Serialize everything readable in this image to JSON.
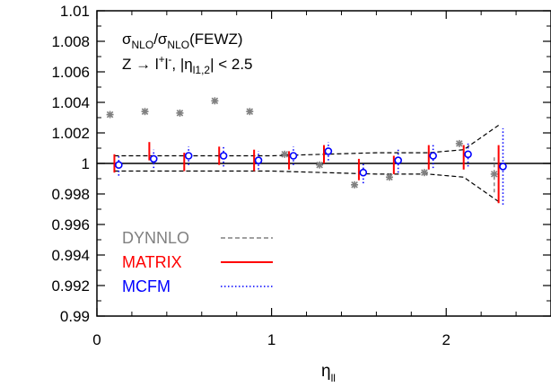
{
  "chart_data": {
    "type": "scatter",
    "xlabel_main": "η",
    "xlabel_sub": "ll",
    "xlim": [
      0,
      2.6
    ],
    "ylim": [
      0.99,
      1.01
    ],
    "xticks": [
      0,
      1,
      2
    ],
    "xtick_labels": [
      "0",
      "1",
      "2"
    ],
    "yticks": [
      0.99,
      0.992,
      0.994,
      0.996,
      0.998,
      1,
      1.002,
      1.004,
      1.006,
      1.008,
      1.01
    ],
    "ytick_labels": [
      "0.99",
      "0.992",
      "0.994",
      "0.996",
      "0.998",
      "1",
      "1.002",
      "1.004",
      "1.006",
      "1.008",
      "1.01"
    ],
    "reference_line": 1,
    "annotation_line1": {
      "a": "σ",
      "a_sub": "NLO",
      "sep": "/σ",
      "b_sub": "NLO",
      "tail": "(FEWZ)"
    },
    "annotation_line2": {
      "pre": "Z → l",
      "sup1": "+",
      "mid": "l",
      "sup2": "-",
      "post": ", |η",
      "sub": "l1,2",
      "end": "| < 2.5"
    },
    "band_upper": [
      {
        "x": 0.1,
        "y": 1.0005
      },
      {
        "x": 0.5,
        "y": 1.0005
      },
      {
        "x": 1.0,
        "y": 1.0005
      },
      {
        "x": 1.3,
        "y": 1.0006
      },
      {
        "x": 1.6,
        "y": 1.0007
      },
      {
        "x": 1.9,
        "y": 1.0007
      },
      {
        "x": 2.1,
        "y": 1.0009
      },
      {
        "x": 2.3,
        "y": 1.0025
      }
    ],
    "band_lower": [
      {
        "x": 0.1,
        "y": 0.9995
      },
      {
        "x": 0.5,
        "y": 0.9995
      },
      {
        "x": 1.0,
        "y": 0.9995
      },
      {
        "x": 1.3,
        "y": 0.9994
      },
      {
        "x": 1.6,
        "y": 0.9993
      },
      {
        "x": 1.9,
        "y": 0.9993
      },
      {
        "x": 2.1,
        "y": 0.9991
      },
      {
        "x": 2.3,
        "y": 0.9975
      }
    ],
    "series": [
      {
        "name": "DYNNLO",
        "color": "#808080",
        "marker": "asterisk",
        "points": [
          {
            "x": 0.075,
            "y": 1.0032,
            "err": 0.0002
          },
          {
            "x": 0.275,
            "y": 1.0034,
            "err": 0.0002
          },
          {
            "x": 0.475,
            "y": 1.0033,
            "err": 0.0002
          },
          {
            "x": 0.675,
            "y": 1.0041,
            "err": 0.0002
          },
          {
            "x": 0.875,
            "y": 1.0034,
            "err": 0.0002
          },
          {
            "x": 1.075,
            "y": 1.0006,
            "err": 0.0002
          },
          {
            "x": 1.275,
            "y": 0.9999,
            "err": 0.0002
          },
          {
            "x": 1.475,
            "y": 0.9986,
            "err": 0.0002
          },
          {
            "x": 1.675,
            "y": 0.9991,
            "err": 0.0002
          },
          {
            "x": 1.875,
            "y": 0.9994,
            "err": 0.0002
          },
          {
            "x": 2.075,
            "y": 1.0013,
            "err": 0.0002
          },
          {
            "x": 2.275,
            "y": 0.9993,
            "err": 0.0012
          }
        ]
      },
      {
        "name": "MATRIX",
        "color": "#ff0000",
        "marker": "none",
        "points": [
          {
            "x": 0.1,
            "y": 1.0,
            "err": 0.0006
          },
          {
            "x": 0.3,
            "y": 1.0008,
            "err": 0.0006
          },
          {
            "x": 0.5,
            "y": 1.0001,
            "err": 0.0006
          },
          {
            "x": 0.7,
            "y": 1.0005,
            "err": 0.0006
          },
          {
            "x": 0.9,
            "y": 1.0002,
            "err": 0.0007
          },
          {
            "x": 1.1,
            "y": 1.0002,
            "err": 0.0006
          },
          {
            "x": 1.3,
            "y": 1.0006,
            "err": 0.0006
          },
          {
            "x": 1.5,
            "y": 0.9996,
            "err": 0.0007
          },
          {
            "x": 1.7,
            "y": 0.9999,
            "err": 0.0006
          },
          {
            "x": 1.9,
            "y": 1.0004,
            "err": 0.0008
          },
          {
            "x": 2.1,
            "y": 1.0004,
            "err": 0.0008
          },
          {
            "x": 2.3,
            "y": 0.9993,
            "err": 0.0019
          }
        ]
      },
      {
        "name": "MCFM",
        "color": "#0000ff",
        "marker": "circle",
        "points": [
          {
            "x": 0.125,
            "y": 0.9999,
            "err": 0.0007
          },
          {
            "x": 0.325,
            "y": 1.0003,
            "err": 0.0006
          },
          {
            "x": 0.525,
            "y": 1.0005,
            "err": 0.0006
          },
          {
            "x": 0.725,
            "y": 1.0005,
            "err": 0.0007
          },
          {
            "x": 0.925,
            "y": 1.0002,
            "err": 0.0006
          },
          {
            "x": 1.125,
            "y": 1.0005,
            "err": 0.0006
          },
          {
            "x": 1.325,
            "y": 1.0008,
            "err": 0.0006
          },
          {
            "x": 1.525,
            "y": 0.9994,
            "err": 0.0007
          },
          {
            "x": 1.725,
            "y": 1.0002,
            "err": 0.0008
          },
          {
            "x": 1.925,
            "y": 1.0005,
            "err": 0.0008
          },
          {
            "x": 2.125,
            "y": 1.0006,
            "err": 0.0008
          },
          {
            "x": 2.325,
            "y": 0.9998,
            "err": 0.0025
          }
        ]
      }
    ],
    "legend_position": "bottom-left",
    "legend": [
      {
        "label": "DYNNLO",
        "color": "#808080",
        "style": "dashed"
      },
      {
        "label": "MATRIX",
        "color": "#ff0000",
        "style": "solid"
      },
      {
        "label": "MCFM",
        "color": "#0000ff",
        "style": "dotted"
      }
    ]
  }
}
